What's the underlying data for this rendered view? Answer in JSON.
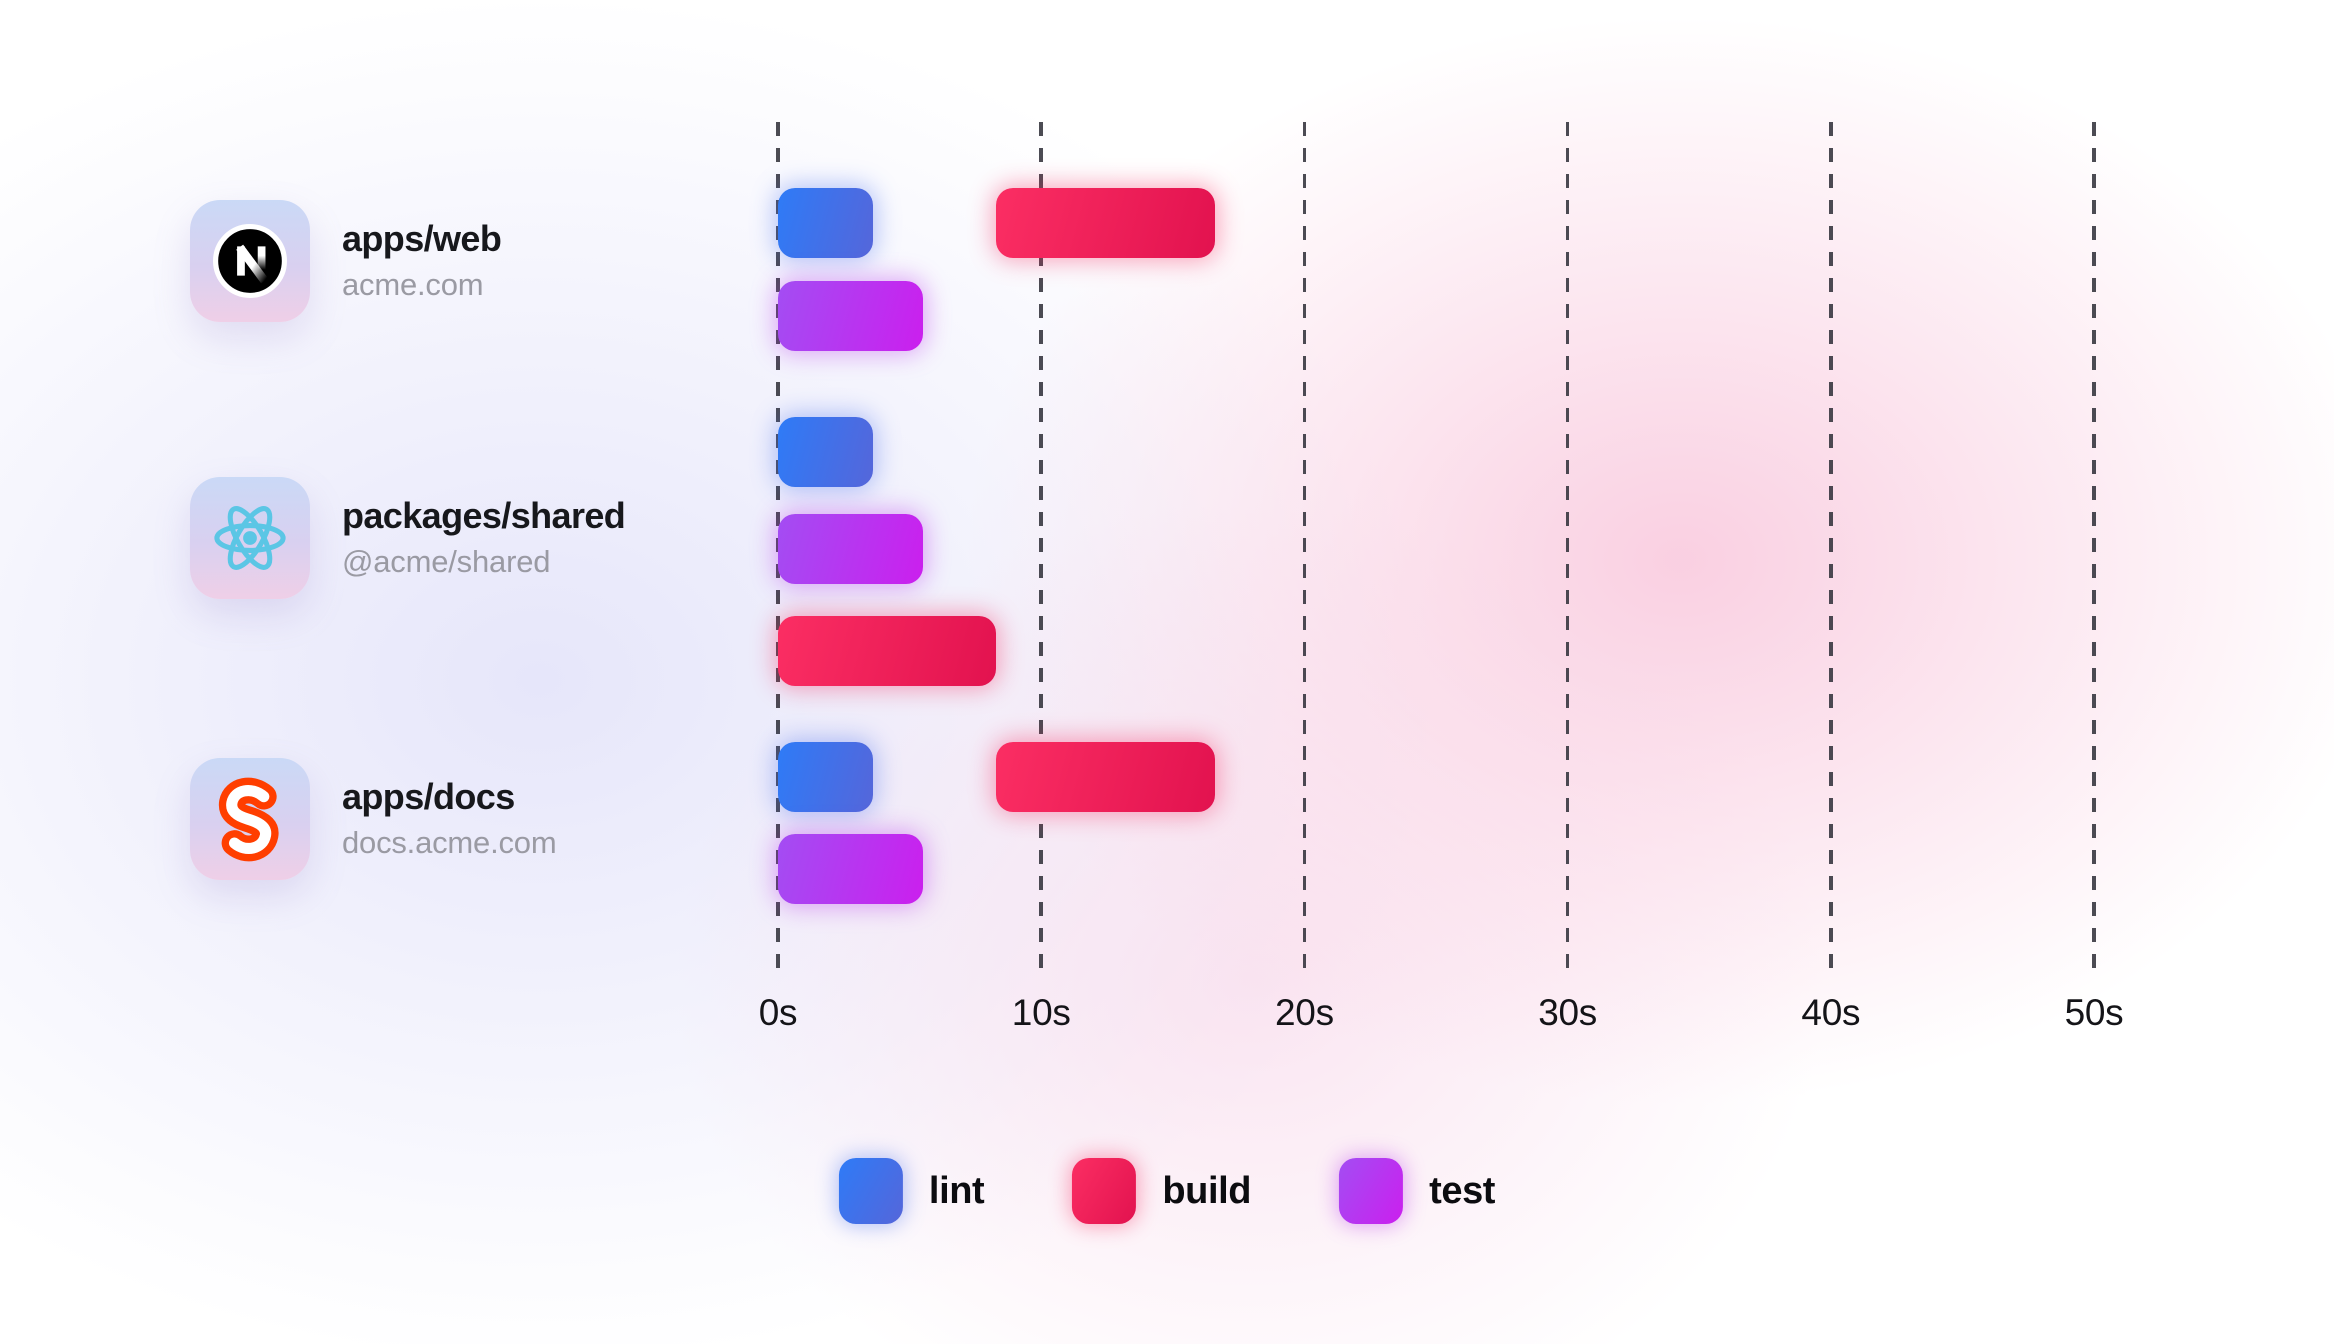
{
  "chart_data": {
    "type": "bar",
    "variant": "horizontal-gantt-task-timeline",
    "title": "",
    "axis": {
      "unit": "seconds",
      "min": 0,
      "max": 50,
      "ticks": [
        {
          "value": 0,
          "label": "0s"
        },
        {
          "value": 10,
          "label": "10s"
        },
        {
          "value": 20,
          "label": "20s"
        },
        {
          "value": 30,
          "label": "30s"
        },
        {
          "value": 40,
          "label": "40s"
        },
        {
          "value": 50,
          "label": "50s"
        }
      ],
      "gridlines": "dashed-vertical"
    },
    "legend": {
      "position": "bottom-center",
      "items": [
        {
          "id": "lint",
          "label": "lint",
          "color_from": "#2e7bf7",
          "color_to": "#5566da"
        },
        {
          "id": "build",
          "label": "build",
          "color_from": "#fb2e63",
          "color_to": "#e2124f"
        },
        {
          "id": "test",
          "label": "test",
          "color_from": "#a34df3",
          "color_to": "#cb1fee"
        }
      ]
    },
    "rows": [
      {
        "title": "apps/web",
        "subtitle": "acme.com",
        "icon": "nextjs-logo",
        "tasks": [
          {
            "type": "lint",
            "start_s": 0,
            "end_s": 3.6,
            "lane": 0
          },
          {
            "type": "build",
            "start_s": 8.3,
            "end_s": 16.6,
            "lane": 0
          },
          {
            "type": "test",
            "start_s": 0,
            "end_s": 5.5,
            "lane": 1
          }
        ]
      },
      {
        "title": "packages/shared",
        "subtitle": "@acme/shared",
        "icon": "react-logo",
        "tasks": [
          {
            "type": "lint",
            "start_s": 0,
            "end_s": 3.6,
            "lane": 0
          },
          {
            "type": "test",
            "start_s": 0,
            "end_s": 5.5,
            "lane": 1
          },
          {
            "type": "build",
            "start_s": 0,
            "end_s": 8.3,
            "lane": 2
          }
        ]
      },
      {
        "title": "apps/docs",
        "subtitle": "docs.acme.com",
        "icon": "svelte-logo",
        "tasks": [
          {
            "type": "lint",
            "start_s": 0,
            "end_s": 3.6,
            "lane": 0
          },
          {
            "type": "build",
            "start_s": 8.3,
            "end_s": 16.6,
            "lane": 0
          },
          {
            "type": "test",
            "start_s": 0,
            "end_s": 5.5,
            "lane": 1
          }
        ]
      }
    ]
  },
  "colors": {
    "background_pink_blob": "#f9cde0",
    "background_lavender_blob": "#e6e6fa",
    "gridline": "#33333c",
    "axis_text": "#141418",
    "title_text": "#17181c",
    "subtitle_text": "#9a9aa3",
    "svelte_orange": "#ff3e00",
    "react_cyan": "#5bc6e5",
    "next_black": "#000000"
  }
}
